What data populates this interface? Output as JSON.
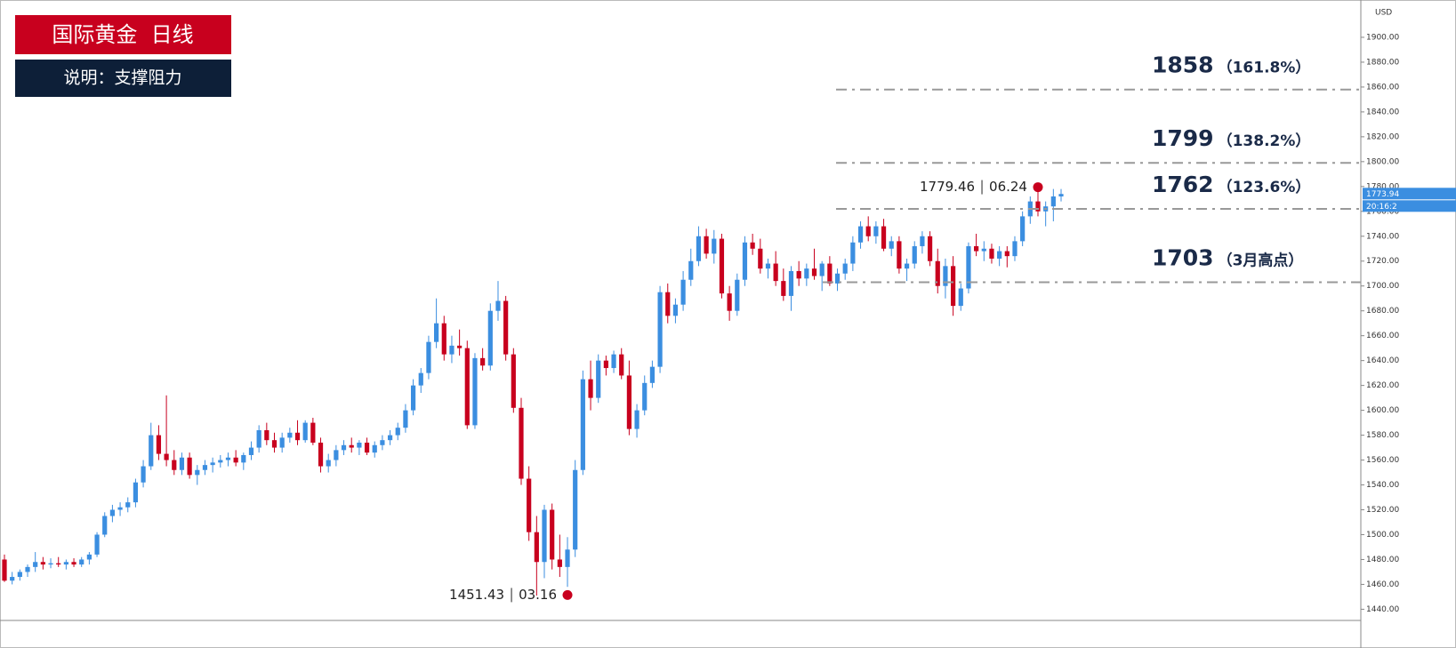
{
  "chart_data": {
    "type": "candlestick",
    "title": "国际黄金  日线",
    "subtitle": "说明：支撑阻力",
    "currency": "USD",
    "up_color": "#3b8ee0",
    "down_color": "#c8001e",
    "ylim": [
      1431,
      1930
    ],
    "yticks": [
      {
        "value": 1440,
        "label": "1440.00"
      },
      {
        "value": 1460,
        "label": "1460.00"
      },
      {
        "value": 1480,
        "label": "1480.00"
      },
      {
        "value": 1500,
        "label": "1500.00"
      },
      {
        "value": 1520,
        "label": "1520.00"
      },
      {
        "value": 1540,
        "label": "1540.00"
      },
      {
        "value": 1560,
        "label": "1560.00"
      },
      {
        "value": 1580,
        "label": "1580.00"
      },
      {
        "value": 1600,
        "label": "1600.00"
      },
      {
        "value": 1620,
        "label": "1620.00"
      },
      {
        "value": 1640,
        "label": "1640.00"
      },
      {
        "value": 1660,
        "label": "1660.00"
      },
      {
        "value": 1680,
        "label": "1680.00"
      },
      {
        "value": 1700,
        "label": "1700.00"
      },
      {
        "value": 1720,
        "label": "1720.00"
      },
      {
        "value": 1740,
        "label": "1740.00"
      },
      {
        "value": 1760,
        "label": "1760.00"
      },
      {
        "value": 1780,
        "label": "1780.00"
      },
      {
        "value": 1800,
        "label": "1800.00"
      },
      {
        "value": 1820,
        "label": "1820.00"
      },
      {
        "value": 1840,
        "label": "1840.00"
      },
      {
        "value": 1860,
        "label": "1860.00"
      },
      {
        "value": 1880,
        "label": "1880.00"
      },
      {
        "value": 1900,
        "label": "1900.00"
      }
    ],
    "current_price": 1773.94,
    "countdown": "20:16:2",
    "levels": [
      {
        "value": 1858,
        "note": "（161.8%）"
      },
      {
        "value": 1799,
        "note": "（138.2%）"
      },
      {
        "value": 1762,
        "note": "（123.6%）"
      },
      {
        "value": 1703,
        "note": "（3月高点）"
      }
    ],
    "annotations": [
      {
        "price": 1451.43,
        "date": "03.16"
      },
      {
        "price": 1779.46,
        "date": "06.24"
      }
    ],
    "ohlc": [
      [
        1480,
        1484,
        1462,
        1463
      ],
      [
        1463,
        1470,
        1460,
        1466
      ],
      [
        1466,
        1472,
        1463,
        1470
      ],
      [
        1470,
        1476,
        1466,
        1474
      ],
      [
        1474,
        1486,
        1470,
        1478
      ],
      [
        1478,
        1482,
        1472,
        1476
      ],
      [
        1476,
        1481,
        1473,
        1477
      ],
      [
        1477,
        1482,
        1474,
        1476
      ],
      [
        1476,
        1480,
        1472,
        1478
      ],
      [
        1478,
        1481,
        1474,
        1476
      ],
      [
        1476,
        1482,
        1474,
        1480
      ],
      [
        1480,
        1486,
        1476,
        1484
      ],
      [
        1484,
        1502,
        1482,
        1500
      ],
      [
        1500,
        1518,
        1498,
        1515
      ],
      [
        1515,
        1524,
        1510,
        1520
      ],
      [
        1520,
        1526,
        1515,
        1522
      ],
      [
        1522,
        1530,
        1518,
        1526
      ],
      [
        1526,
        1545,
        1522,
        1542
      ],
      [
        1542,
        1560,
        1538,
        1555
      ],
      [
        1555,
        1590,
        1552,
        1580
      ],
      [
        1580,
        1588,
        1560,
        1565
      ],
      [
        1565,
        1612,
        1555,
        1560
      ],
      [
        1560,
        1568,
        1548,
        1552
      ],
      [
        1552,
        1566,
        1548,
        1562
      ],
      [
        1562,
        1566,
        1545,
        1548
      ],
      [
        1548,
        1556,
        1540,
        1552
      ],
      [
        1552,
        1560,
        1548,
        1556
      ],
      [
        1556,
        1562,
        1550,
        1558
      ],
      [
        1558,
        1564,
        1554,
        1560
      ],
      [
        1560,
        1566,
        1555,
        1562
      ],
      [
        1562,
        1568,
        1555,
        1558
      ],
      [
        1558,
        1566,
        1552,
        1564
      ],
      [
        1564,
        1575,
        1560,
        1570
      ],
      [
        1570,
        1588,
        1566,
        1584
      ],
      [
        1584,
        1590,
        1572,
        1576
      ],
      [
        1576,
        1582,
        1566,
        1570
      ],
      [
        1570,
        1582,
        1566,
        1578
      ],
      [
        1578,
        1586,
        1574,
        1582
      ],
      [
        1582,
        1592,
        1572,
        1576
      ],
      [
        1576,
        1592,
        1574,
        1590
      ],
      [
        1590,
        1594,
        1572,
        1574
      ],
      [
        1574,
        1578,
        1550,
        1555
      ],
      [
        1555,
        1565,
        1550,
        1560
      ],
      [
        1560,
        1572,
        1555,
        1568
      ],
      [
        1568,
        1576,
        1564,
        1572
      ],
      [
        1572,
        1578,
        1566,
        1570
      ],
      [
        1570,
        1576,
        1564,
        1574
      ],
      [
        1574,
        1578,
        1564,
        1566
      ],
      [
        1566,
        1575,
        1562,
        1572
      ],
      [
        1572,
        1580,
        1568,
        1576
      ],
      [
        1576,
        1584,
        1572,
        1580
      ],
      [
        1580,
        1590,
        1576,
        1586
      ],
      [
        1586,
        1605,
        1582,
        1600
      ],
      [
        1600,
        1625,
        1596,
        1620
      ],
      [
        1620,
        1634,
        1614,
        1630
      ],
      [
        1630,
        1660,
        1625,
        1655
      ],
      [
        1655,
        1690,
        1650,
        1670
      ],
      [
        1670,
        1676,
        1640,
        1645
      ],
      [
        1645,
        1660,
        1638,
        1652
      ],
      [
        1652,
        1665,
        1644,
        1650
      ],
      [
        1650,
        1656,
        1585,
        1588
      ],
      [
        1588,
        1646,
        1585,
        1642
      ],
      [
        1642,
        1650,
        1632,
        1636
      ],
      [
        1636,
        1686,
        1632,
        1680
      ],
      [
        1680,
        1704,
        1672,
        1688
      ],
      [
        1688,
        1692,
        1640,
        1645
      ],
      [
        1645,
        1650,
        1598,
        1602
      ],
      [
        1602,
        1610,
        1540,
        1545
      ],
      [
        1545,
        1555,
        1495,
        1502
      ],
      [
        1502,
        1515,
        1451,
        1478
      ],
      [
        1478,
        1524,
        1465,
        1520
      ],
      [
        1520,
        1525,
        1472,
        1480
      ],
      [
        1480,
        1500,
        1466,
        1474
      ],
      [
        1474,
        1498,
        1458,
        1488
      ],
      [
        1488,
        1560,
        1482,
        1552
      ],
      [
        1552,
        1632,
        1548,
        1625
      ],
      [
        1625,
        1640,
        1600,
        1610
      ],
      [
        1610,
        1645,
        1606,
        1640
      ],
      [
        1640,
        1644,
        1628,
        1634
      ],
      [
        1634,
        1648,
        1630,
        1645
      ],
      [
        1645,
        1650,
        1625,
        1628
      ],
      [
        1628,
        1640,
        1580,
        1585
      ],
      [
        1585,
        1605,
        1578,
        1600
      ],
      [
        1600,
        1628,
        1596,
        1622
      ],
      [
        1622,
        1640,
        1618,
        1635
      ],
      [
        1635,
        1700,
        1630,
        1695
      ],
      [
        1695,
        1702,
        1670,
        1676
      ],
      [
        1676,
        1690,
        1670,
        1685
      ],
      [
        1685,
        1712,
        1680,
        1705
      ],
      [
        1705,
        1730,
        1700,
        1720
      ],
      [
        1720,
        1748,
        1716,
        1740
      ],
      [
        1740,
        1746,
        1722,
        1726
      ],
      [
        1726,
        1745,
        1718,
        1738
      ],
      [
        1738,
        1742,
        1690,
        1694
      ],
      [
        1694,
        1700,
        1672,
        1680
      ],
      [
        1680,
        1710,
        1676,
        1705
      ],
      [
        1705,
        1740,
        1700,
        1735
      ],
      [
        1735,
        1742,
        1725,
        1730
      ],
      [
        1730,
        1738,
        1710,
        1714
      ],
      [
        1714,
        1722,
        1706,
        1718
      ],
      [
        1718,
        1728,
        1700,
        1704
      ],
      [
        1704,
        1714,
        1688,
        1692
      ],
      [
        1692,
        1716,
        1680,
        1712
      ],
      [
        1712,
        1720,
        1700,
        1706
      ],
      [
        1706,
        1718,
        1700,
        1714
      ],
      [
        1714,
        1730,
        1705,
        1708
      ],
      [
        1708,
        1720,
        1696,
        1718
      ],
      [
        1718,
        1724,
        1700,
        1702
      ],
      [
        1702,
        1714,
        1696,
        1710
      ],
      [
        1710,
        1722,
        1705,
        1718
      ],
      [
        1718,
        1740,
        1712,
        1735
      ],
      [
        1735,
        1752,
        1730,
        1748
      ],
      [
        1748,
        1756,
        1736,
        1740
      ],
      [
        1740,
        1752,
        1734,
        1748
      ],
      [
        1748,
        1754,
        1728,
        1730
      ],
      [
        1730,
        1740,
        1724,
        1736
      ],
      [
        1736,
        1740,
        1710,
        1714
      ],
      [
        1714,
        1722,
        1704,
        1718
      ],
      [
        1718,
        1736,
        1714,
        1732
      ],
      [
        1732,
        1744,
        1726,
        1740
      ],
      [
        1740,
        1744,
        1716,
        1720
      ],
      [
        1720,
        1730,
        1694,
        1700
      ],
      [
        1700,
        1722,
        1690,
        1716
      ],
      [
        1716,
        1724,
        1676,
        1684
      ],
      [
        1684,
        1702,
        1680,
        1698
      ],
      [
        1698,
        1735,
        1694,
        1732
      ],
      [
        1732,
        1742,
        1724,
        1728
      ],
      [
        1728,
        1736,
        1720,
        1730
      ],
      [
        1730,
        1734,
        1718,
        1722
      ],
      [
        1722,
        1732,
        1716,
        1728
      ],
      [
        1728,
        1732,
        1715,
        1724
      ],
      [
        1724,
        1740,
        1720,
        1736
      ],
      [
        1736,
        1760,
        1732,
        1756
      ],
      [
        1756,
        1772,
        1750,
        1768
      ],
      [
        1768,
        1780,
        1756,
        1760
      ],
      [
        1760,
        1768,
        1748,
        1764
      ],
      [
        1764,
        1778,
        1752,
        1772
      ],
      [
        1772,
        1778,
        1768,
        1774
      ]
    ]
  }
}
